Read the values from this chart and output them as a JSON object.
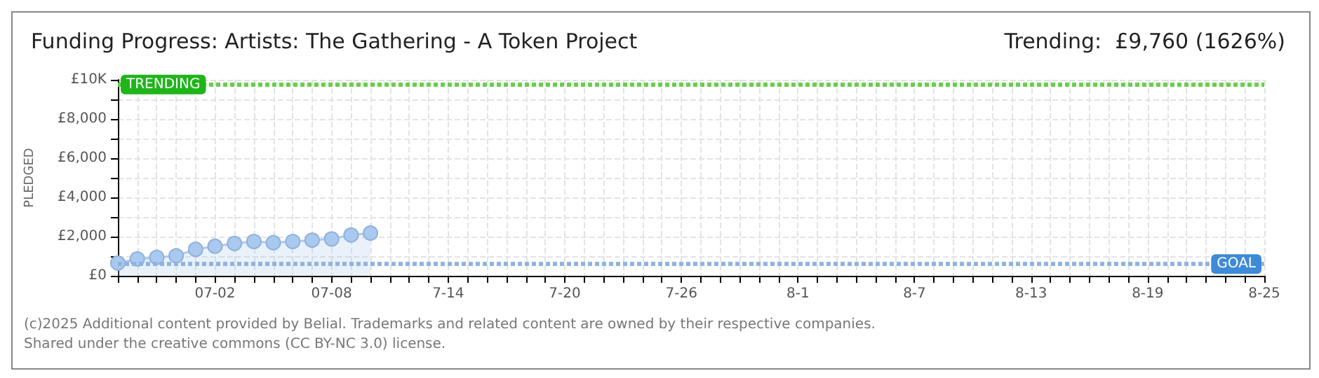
{
  "chart_data": {
    "type": "area",
    "title": "Funding Progress: Artists: The Gathering - A Token Project",
    "subtitle": "Trending:  £9,760 (1626%)",
    "ylabel": "PLEDGED",
    "annotations": [
      "(c)2025 Additional content provided by Belial. Trademarks and related content are owned by their respective companies.",
      "Shared under the creative commons (CC BY-NC 3.0) license."
    ],
    "categories": [
      null,
      null,
      null,
      null,
      null,
      "07-02",
      null,
      null,
      null,
      null,
      null,
      "07-08",
      null,
      null,
      null,
      null,
      null,
      "7-14",
      null,
      null,
      null,
      null,
      null,
      "7-20",
      null,
      null,
      null,
      null,
      null,
      "7-26",
      null,
      null,
      null,
      null,
      null,
      "8-1",
      null,
      null,
      null,
      null,
      null,
      "8-7",
      null,
      null,
      null,
      null,
      null,
      "8-13",
      null,
      null,
      null,
      null,
      null,
      "8-19",
      null,
      null,
      null,
      null,
      null,
      "8-25"
    ],
    "series": [
      {
        "color": "#a9c9ef",
        "values": [
          650,
          860,
          940,
          1020,
          1350,
          1510,
          1650,
          1750,
          1690,
          1750,
          1820,
          1880,
          2080,
          2180,
          null,
          null,
          null,
          null,
          null,
          null,
          null,
          null,
          null,
          null,
          null,
          null,
          null,
          null,
          null,
          null,
          null,
          null,
          null,
          null,
          null,
          null,
          null,
          null,
          null,
          null,
          null,
          null,
          null,
          null,
          null,
          null,
          null,
          null,
          null,
          null,
          null,
          null,
          null,
          null,
          null,
          null,
          null,
          null,
          null,
          null
        ]
      }
    ],
    "ylim": [
      0,
      10000
    ],
    "yticks": [
      {
        "value": 0,
        "label": "£0"
      },
      {
        "value": 1000,
        "label": null
      },
      {
        "value": 2000,
        "label": "£2,000"
      },
      {
        "value": 3000,
        "label": null
      },
      {
        "value": 4000,
        "label": "£4,000"
      },
      {
        "value": 5000,
        "label": null
      },
      {
        "value": 6000,
        "label": "£6,000"
      },
      {
        "value": 7000,
        "label": null
      },
      {
        "value": 8000,
        "label": "£8,000"
      },
      {
        "value": 9000,
        "label": null
      },
      {
        "value": 10000,
        "label": "£10K"
      }
    ],
    "ref_lines": [
      {
        "axis": "y",
        "value": 9760,
        "label": "TRENDING",
        "color": "#66d04a",
        "line_style": "dotted"
      },
      {
        "axis": "y",
        "value": 600,
        "label": "GOAL",
        "color": "#8fb4e3",
        "line_style": "dotted"
      }
    ],
    "grid": true,
    "marker": "circle"
  }
}
